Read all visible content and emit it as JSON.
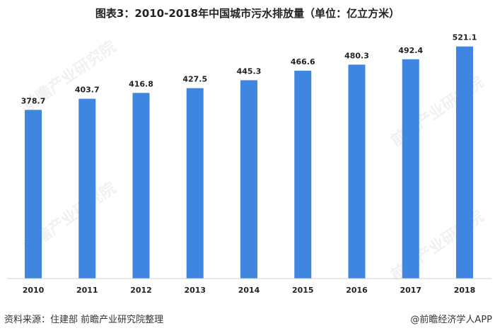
{
  "chart_data": {
    "type": "bar",
    "title": "图表3：2010-2018年中国城市污水排放量（单位：亿立方米）",
    "categories": [
      "2010",
      "2011",
      "2012",
      "2013",
      "2014",
      "2015",
      "2016",
      "2017",
      "2018"
    ],
    "values": [
      378.7,
      403.7,
      416.8,
      427.5,
      445.3,
      466.6,
      480.3,
      492.4,
      521.1
    ],
    "data_labels": [
      "378.7",
      "403.7",
      "416.8",
      "427.5",
      "445.3",
      "466.6",
      "480.3",
      "492.4",
      "521.1"
    ],
    "xlabel": "",
    "ylabel": "",
    "ylim": [
      0,
      600
    ],
    "grid": false,
    "y_axis_visible": false,
    "bar_color": "#3f86e0"
  },
  "footer": {
    "source": "资料来源：住建部 前瞻产业研究院整理",
    "brand": "@前瞻经济学人APP"
  },
  "watermark": "前瞻产业研究院"
}
